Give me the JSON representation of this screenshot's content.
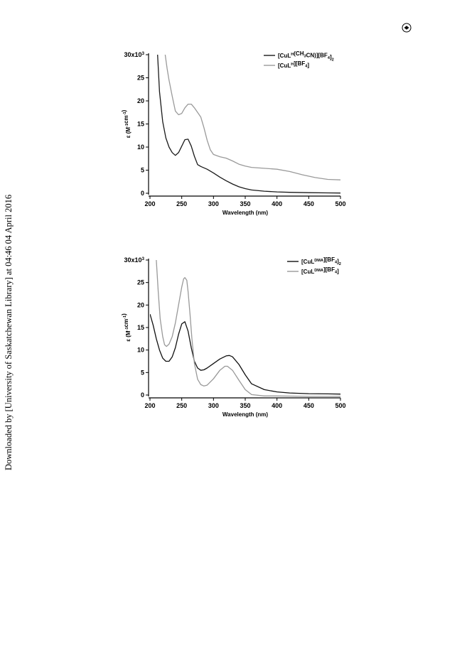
{
  "sidebar": {
    "text": "Downloaded by [University of Saskatchewan Library] at 04:46 04 April 2016"
  },
  "header": {
    "icon": "publisher-logo-icon"
  },
  "chart_data": [
    {
      "type": "line",
      "xlabel": "Wavelength (nm)",
      "ylabel_parts": {
        "main": "ε (M",
        "sup1": "-1",
        "mid": "cm",
        "sup2": "-1",
        "end": ")"
      },
      "xlim": [
        200,
        500
      ],
      "ylim": [
        0,
        30
      ],
      "x_ticks": [
        200,
        250,
        300,
        350,
        400,
        450,
        500
      ],
      "y_ticks": [
        0,
        5,
        10,
        15,
        20,
        25
      ],
      "y_top_label": {
        "main": "30x10",
        "sup": "3"
      },
      "legend_position": "top-right",
      "series": [
        {
          "name_parts": {
            "a": "[CuL",
            "sup": "H",
            "b": "(CH",
            "sub1": "3",
            "c": "CN)][BF",
            "sub2": "4",
            "d": "]",
            "sub3": "2"
          },
          "color": "#1a1a1a",
          "x": [
            212,
            215,
            220,
            225,
            230,
            235,
            240,
            245,
            250,
            255,
            260,
            265,
            270,
            275,
            280,
            290,
            300,
            310,
            320,
            330,
            340,
            350,
            360,
            380,
            400,
            420,
            450,
            480,
            500
          ],
          "y": [
            30,
            22,
            15.5,
            12,
            10,
            8.8,
            8.2,
            8.8,
            10.2,
            11.6,
            11.7,
            10.2,
            8,
            6.2,
            5.8,
            5.2,
            4.4,
            3.5,
            2.7,
            2,
            1.4,
            1,
            0.7,
            0.45,
            0.3,
            0.2,
            0.12,
            0.08,
            0.05
          ]
        },
        {
          "name_parts": {
            "a": "[CuL",
            "sup": "H",
            "b": "][BF",
            "sub1": "4",
            "c": "]"
          },
          "color": "#9a9a9a",
          "x": [
            224,
            227,
            230,
            235,
            240,
            245,
            250,
            255,
            260,
            265,
            270,
            275,
            280,
            285,
            290,
            295,
            300,
            310,
            320,
            330,
            340,
            350,
            360,
            380,
            400,
            420,
            440,
            460,
            480,
            500
          ],
          "y": [
            30,
            27,
            24.5,
            21,
            17.8,
            17.0,
            17.3,
            18.5,
            19.3,
            19.3,
            18.5,
            17.5,
            16.5,
            14.2,
            11.5,
            9.4,
            8.4,
            7.9,
            7.6,
            7.0,
            6.3,
            5.9,
            5.6,
            5.4,
            5.2,
            4.7,
            4.0,
            3.4,
            3.0,
            2.9
          ]
        }
      ]
    },
    {
      "type": "line",
      "xlabel": "Wavelength (nm)",
      "ylabel_parts": {
        "main": "ε (M",
        "sup1": "-1",
        "mid": "cm",
        "sup2": "-1",
        "end": ")"
      },
      "xlim": [
        200,
        500
      ],
      "ylim": [
        0,
        30
      ],
      "x_ticks": [
        200,
        250,
        300,
        350,
        400,
        450,
        500
      ],
      "y_ticks": [
        0,
        5,
        10,
        15,
        20,
        25
      ],
      "y_top_label": {
        "main": "30x10",
        "sup": "3"
      },
      "legend_position": "top-right",
      "series": [
        {
          "name_parts": {
            "a": "[CuL",
            "sup": "DMA",
            "b": "][BF",
            "sub1": "4",
            "c": "]",
            "sub2": "2"
          },
          "color": "#111111",
          "x": [
            200,
            205,
            210,
            215,
            220,
            225,
            230,
            235,
            240,
            245,
            250,
            255,
            260,
            265,
            270,
            275,
            280,
            285,
            290,
            300,
            310,
            320,
            325,
            330,
            340,
            350,
            360,
            380,
            400,
            420,
            450,
            480,
            500
          ],
          "y": [
            18,
            15.5,
            12.5,
            10,
            8.2,
            7.5,
            7.5,
            8.5,
            10.5,
            13.5,
            15.8,
            16.3,
            14.2,
            10.5,
            7.5,
            6,
            5.5,
            5.6,
            6,
            7,
            8,
            8.7,
            8.8,
            8.5,
            6.8,
            4.5,
            2.5,
            1.2,
            0.7,
            0.45,
            0.3,
            0.25,
            0.2
          ]
        },
        {
          "name_parts": {
            "a": "[CuL",
            "sup": "DMA",
            "b": "][BF",
            "sub1": "4",
            "c": "]"
          },
          "color": "#999999",
          "x": [
            210,
            213,
            216,
            220,
            223,
            226,
            230,
            235,
            240,
            245,
            250,
            253,
            255,
            258,
            260,
            263,
            266,
            270,
            275,
            280,
            285,
            290,
            300,
            310,
            318,
            322,
            330,
            340,
            350,
            360,
            380,
            400,
            450,
            500
          ],
          "y": [
            30,
            23,
            17,
            13,
            11.2,
            10.8,
            11.3,
            13,
            16,
            20,
            24,
            25.8,
            26.1,
            25.5,
            23,
            18,
            12.5,
            7,
            3.5,
            2.3,
            2.0,
            2.2,
            3.6,
            5.5,
            6.4,
            6.4,
            5.5,
            3.3,
            1.2,
            0.1,
            -0.2,
            -0.2,
            -0.3,
            -0.3
          ]
        }
      ]
    }
  ]
}
